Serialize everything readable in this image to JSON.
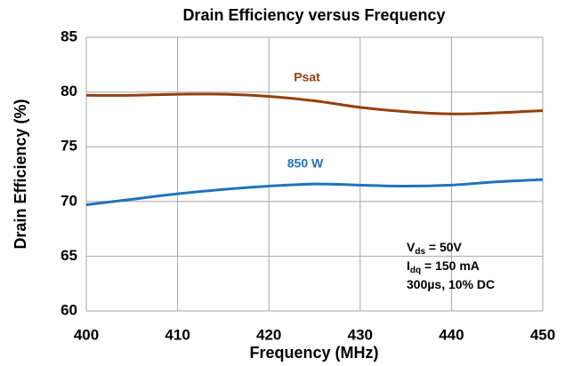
{
  "chart_data": {
    "type": "line",
    "title": "Drain Efficiency versus Frequency",
    "x_label": "Frequency (MHz)",
    "y_label": "Drain Efficiency (%)",
    "x": [
      400,
      405,
      410,
      415,
      420,
      425,
      430,
      435,
      440,
      445,
      450
    ],
    "series": [
      {
        "name": "Psat",
        "color": "#94400f",
        "values": [
          79.7,
          79.7,
          79.8,
          79.8,
          79.6,
          79.2,
          78.6,
          78.2,
          78.0,
          78.1,
          78.3
        ]
      },
      {
        "name": "850 W",
        "color": "#1f74bb",
        "values": [
          69.7,
          70.2,
          70.7,
          71.1,
          71.4,
          71.6,
          71.5,
          71.4,
          71.5,
          71.8,
          72.0
        ]
      }
    ],
    "conditions": [
      [
        "V",
        "ds",
        " = 50V"
      ],
      [
        "I",
        "dq",
        " = 150 mA"
      ],
      [
        "300µs, 10% DC"
      ]
    ],
    "xlim": [
      400,
      450
    ],
    "xticks": [
      400,
      410,
      420,
      430,
      440,
      450
    ],
    "ylim": [
      60,
      85
    ],
    "yticks": [
      60,
      65,
      70,
      75,
      80,
      85
    ],
    "grid": true
  }
}
